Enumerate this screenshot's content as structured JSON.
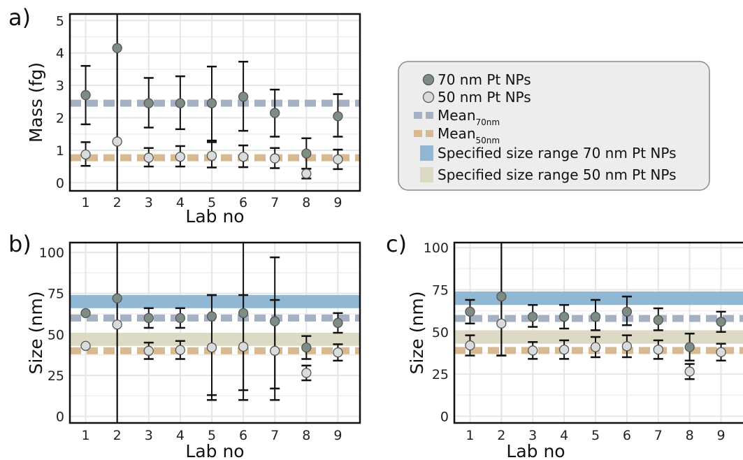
{
  "legend": {
    "items": [
      {
        "kind": "marker",
        "color": "#7d8c84",
        "label": "70 nm Pt NPs",
        "sub": ""
      },
      {
        "kind": "marker",
        "color": "#d9dcdc",
        "label": "50 nm Pt NPs",
        "sub": ""
      },
      {
        "kind": "dash",
        "color": "#a6b0c3",
        "label": "Mean",
        "sub": "70nm"
      },
      {
        "kind": "dash",
        "color": "#d8b990",
        "label": "Mean",
        "sub": "50nm"
      },
      {
        "kind": "band",
        "color": "#90b8d4",
        "label": "Specified size range 70 nm Pt NPs",
        "sub": ""
      },
      {
        "kind": "band",
        "color": "#dcdac4",
        "label": "Specified size range 50 nm Pt NPs",
        "sub": ""
      }
    ]
  },
  "colors": {
    "np70": "#7d8c84",
    "np50": "#d9dcdc",
    "mean70": "#a6b0c3",
    "mean50": "#d8b990",
    "band70": "#90b8d4",
    "band50": "#dcdac4",
    "grid": "#e6e6e6",
    "axis": "#111111"
  },
  "chart_data": [
    {
      "panel": "a)",
      "type": "scatter",
      "xlabel": "Lab no",
      "ylabel": "Mass (fg)",
      "x": [
        1,
        2,
        3,
        4,
        5,
        6,
        7,
        8,
        9
      ],
      "ylim": [
        -0.25,
        5.2
      ],
      "xlim": [
        0.5,
        9.7
      ],
      "yticks": [
        0,
        1,
        2,
        3,
        4,
        5
      ],
      "means": {
        "70nm": 2.45,
        "50nm": 0.77
      },
      "series": [
        {
          "name": "70 nm Pt NPs",
          "values": [
            2.7,
            4.15,
            2.45,
            2.45,
            2.45,
            2.65,
            2.15,
            0.9,
            2.05
          ],
          "err_low": [
            1.8,
            -0.3,
            1.7,
            1.65,
            1.3,
            1.6,
            1.42,
            0.43,
            1.42
          ],
          "err_high": [
            3.6,
            5.4,
            3.23,
            3.28,
            3.58,
            3.73,
            2.87,
            1.37,
            2.73
          ]
        },
        {
          "name": "50 nm Pt NPs",
          "values": [
            0.87,
            1.27,
            0.77,
            0.8,
            0.83,
            0.8,
            0.75,
            0.28,
            0.72
          ],
          "err_low": [
            0.52,
            -0.3,
            0.5,
            0.5,
            0.47,
            0.48,
            0.45,
            0.13,
            0.42
          ],
          "err_high": [
            1.25,
            5.4,
            1.07,
            1.13,
            1.25,
            1.15,
            1.07,
            0.43,
            1.02
          ]
        }
      ]
    },
    {
      "panel": "b)",
      "type": "scatter",
      "xlabel": "Lab no",
      "ylabel": "Size (nm)",
      "x": [
        1,
        2,
        3,
        4,
        5,
        6,
        7,
        8,
        9
      ],
      "ylim": [
        -4,
        106
      ],
      "xlim": [
        0.5,
        9.7
      ],
      "yticks": [
        0,
        25,
        50,
        75,
        100
      ],
      "means": {
        "70nm": 60,
        "50nm": 40
      },
      "bands": {
        "70nm": [
          66,
          74
        ],
        "50nm": [
          43,
          51
        ]
      },
      "series": [
        {
          "name": "70 nm Pt NPs",
          "values": [
            63,
            72,
            60,
            60,
            61,
            63,
            58,
            42,
            57
          ],
          "err_low": [
            null,
            -4,
            54,
            54,
            13,
            16,
            17,
            35,
            51
          ],
          "err_high": [
            null,
            106,
            66,
            66,
            74,
            74,
            71,
            49,
            63
          ]
        },
        {
          "name": "50 nm Pt NPs",
          "values": [
            43,
            56,
            40,
            40.5,
            42,
            42.5,
            40,
            26.5,
            39
          ],
          "err_low": [
            null,
            -4,
            35,
            35,
            10,
            10,
            10,
            22,
            34
          ],
          "err_high": [
            null,
            106,
            45,
            46,
            74,
            106,
            97,
            31,
            44
          ]
        }
      ]
    },
    {
      "panel": "c)",
      "type": "scatter",
      "xlabel": "Lab no",
      "ylabel": "Size (nm)",
      "x": [
        1,
        2,
        3,
        4,
        5,
        6,
        7,
        8,
        9
      ],
      "ylim": [
        -4,
        103
      ],
      "xlim": [
        0.5,
        9.7
      ],
      "yticks": [
        0,
        25,
        50,
        75,
        100
      ],
      "means": {
        "70nm": 58,
        "50nm": 39
      },
      "bands": {
        "70nm": [
          66,
          74
        ],
        "50nm": [
          43,
          51
        ]
      },
      "series": [
        {
          "name": "70 nm Pt NPs",
          "values": [
            62,
            71,
            59,
            59,
            59,
            62,
            57,
            41,
            56
          ],
          "err_low": [
            55,
            36,
            53,
            52,
            51,
            54,
            51,
            33,
            50
          ],
          "err_high": [
            69,
            106,
            66,
            66,
            69,
            71,
            64,
            49,
            62
          ]
        },
        {
          "name": "50 nm Pt NPs",
          "values": [
            42,
            55,
            39,
            39.5,
            41,
            41.5,
            39.5,
            26.5,
            38
          ],
          "err_low": [
            36,
            36,
            34,
            34,
            35,
            35,
            34,
            22,
            33
          ],
          "err_high": [
            48,
            106,
            44,
            45,
            47,
            48,
            45,
            31,
            43
          ]
        }
      ]
    }
  ]
}
